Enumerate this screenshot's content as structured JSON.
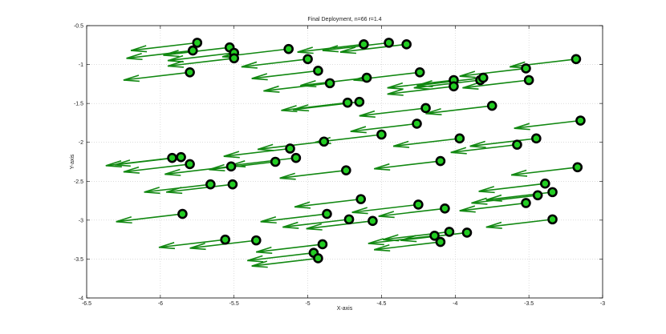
{
  "chart_data": {
    "type": "scatter",
    "title": "Final Deployment, n=66 r=1.4",
    "xlabel": "X-axis",
    "ylabel": "Y-axis",
    "xlim": [
      -6.5,
      -3
    ],
    "ylim": [
      -4,
      -0.5
    ],
    "xticks": [
      -6.5,
      -6,
      -5.5,
      -5,
      -4.5,
      -4,
      -3.5,
      -3
    ],
    "yticks": [
      -0.5,
      -1,
      -1.5,
      -2,
      -2.5,
      -3,
      -3.5,
      -4
    ],
    "xtick_labels": [
      "-6.5",
      "-6",
      "-5.5",
      "-5",
      "-4.5",
      "-4",
      "-3.5",
      "-3"
    ],
    "ytick_labels": [
      "-0.5",
      "-1",
      "-1.5",
      "-2",
      "-2.5",
      "-3",
      "-3.5",
      "-4"
    ],
    "grid": true,
    "arrow_shift": {
      "dx": -0.45,
      "dy": -0.1
    },
    "colors": {
      "point_fill": "#22cc22",
      "point_edge": "#000000",
      "arrow": "#118811",
      "grid": "#c8c8c8"
    },
    "points": [
      [
        -5.75,
        -0.72
      ],
      [
        -5.53,
        -0.78
      ],
      [
        -5.5,
        -0.85
      ],
      [
        -5.5,
        -0.92
      ],
      [
        -5.78,
        -0.82
      ],
      [
        -5.13,
        -0.8
      ],
      [
        -4.62,
        -0.74
      ],
      [
        -4.45,
        -0.72
      ],
      [
        -4.33,
        -0.74
      ],
      [
        -5.0,
        -0.93
      ],
      [
        -5.8,
        -1.1
      ],
      [
        -4.93,
        -1.08
      ],
      [
        -4.85,
        -1.24
      ],
      [
        -4.6,
        -1.17
      ],
      [
        -4.24,
        -1.1
      ],
      [
        -4.01,
        -1.2
      ],
      [
        -4.01,
        -1.28
      ],
      [
        -3.83,
        -1.2
      ],
      [
        -3.81,
        -1.17
      ],
      [
        -3.52,
        -1.05
      ],
      [
        -3.5,
        -1.2
      ],
      [
        -3.18,
        -0.93
      ],
      [
        -4.73,
        -1.49
      ],
      [
        -4.65,
        -1.48
      ],
      [
        -4.2,
        -1.56
      ],
      [
        -3.75,
        -1.53
      ],
      [
        -4.26,
        -1.76
      ],
      [
        -4.5,
        -1.9
      ],
      [
        -4.89,
        -1.99
      ],
      [
        -3.97,
        -1.95
      ],
      [
        -3.58,
        -2.03
      ],
      [
        -3.45,
        -1.95
      ],
      [
        -3.15,
        -1.72
      ],
      [
        -5.92,
        -2.2
      ],
      [
        -5.86,
        -2.19
      ],
      [
        -5.8,
        -2.28
      ],
      [
        -5.52,
        -2.31
      ],
      [
        -5.12,
        -2.08
      ],
      [
        -5.08,
        -2.2
      ],
      [
        -5.22,
        -2.25
      ],
      [
        -4.74,
        -2.36
      ],
      [
        -4.1,
        -2.24
      ],
      [
        -5.66,
        -2.54
      ],
      [
        -5.51,
        -2.54
      ],
      [
        -3.17,
        -2.32
      ],
      [
        -3.39,
        -2.53
      ],
      [
        -3.44,
        -2.68
      ],
      [
        -3.34,
        -2.64
      ],
      [
        -3.52,
        -2.78
      ],
      [
        -5.85,
        -2.92
      ],
      [
        -4.64,
        -2.73
      ],
      [
        -4.25,
        -2.8
      ],
      [
        -4.07,
        -2.85
      ],
      [
        -4.87,
        -2.92
      ],
      [
        -4.72,
        -2.99
      ],
      [
        -4.56,
        -3.01
      ],
      [
        -3.34,
        -2.99
      ],
      [
        -4.04,
        -3.15
      ],
      [
        -3.92,
        -3.16
      ],
      [
        -4.14,
        -3.2
      ],
      [
        -4.1,
        -3.28
      ],
      [
        -5.56,
        -3.25
      ],
      [
        -5.35,
        -3.26
      ],
      [
        -4.9,
        -3.31
      ],
      [
        -4.96,
        -3.42
      ],
      [
        -4.93,
        -3.49
      ]
    ]
  }
}
